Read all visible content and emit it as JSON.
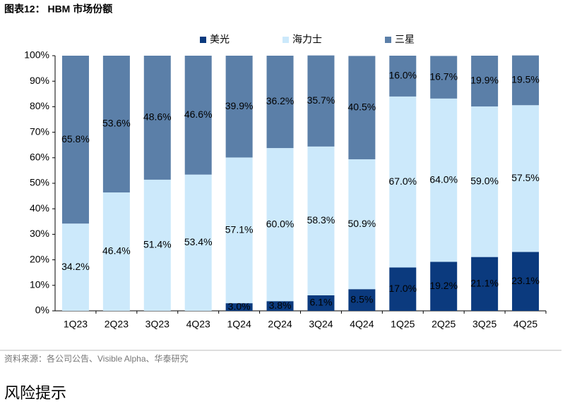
{
  "chart_data": {
    "type": "stacked-bar",
    "title": "图表12： HBM 市场份额",
    "categories": [
      "1Q23",
      "2Q23",
      "3Q23",
      "4Q23",
      "1Q24",
      "2Q24",
      "3Q24",
      "4Q24",
      "1Q25",
      "2Q25",
      "3Q25",
      "4Q25"
    ],
    "series": [
      {
        "name": "美光",
        "color": "#0b3a7e",
        "label_color": "#ffffff",
        "values": [
          null,
          null,
          null,
          null,
          3.0,
          3.8,
          6.1,
          8.5,
          17.0,
          19.2,
          21.1,
          23.1
        ],
        "value_labels": [
          null,
          null,
          null,
          null,
          "3.0%",
          "3.8%",
          "6.1%",
          "8.5%",
          "17.0%",
          "19.2%",
          "21.1%",
          "23.1%"
        ]
      },
      {
        "name": "海力士",
        "color": "#cce9fb",
        "label_color": "#000000",
        "values": [
          34.2,
          46.4,
          51.4,
          53.4,
          57.1,
          60.0,
          58.3,
          50.9,
          67.0,
          64.0,
          59.0,
          57.5
        ],
        "value_labels": [
          "34.2%",
          "46.4%",
          "51.4%",
          "53.4%",
          "57.1%",
          "60.0%",
          "58.3%",
          "50.9%",
          "67.0%",
          "64.0%",
          "59.0%",
          "57.5%"
        ]
      },
      {
        "name": "三星",
        "color": "#5b7fa8",
        "label_color": "#000000",
        "values": [
          65.8,
          53.6,
          48.6,
          46.6,
          39.9,
          36.2,
          35.7,
          40.5,
          16.0,
          16.7,
          19.9,
          19.5
        ],
        "value_labels": [
          "65.8%",
          "53.6%",
          "48.6%",
          "46.6%",
          "39.9%",
          "36.2%",
          "35.7%",
          "40.5%",
          "16.0%",
          "16.7%",
          "19.9%",
          "19.5%"
        ]
      }
    ],
    "ylim": [
      0,
      100
    ],
    "yticks": [
      {
        "value": 0,
        "label": "0%"
      },
      {
        "value": 10,
        "label": "10%"
      },
      {
        "value": 20,
        "label": "20%"
      },
      {
        "value": 30,
        "label": "30%"
      },
      {
        "value": 40,
        "label": "40%"
      },
      {
        "value": 50,
        "label": "50%"
      },
      {
        "value": 60,
        "label": "60%"
      },
      {
        "value": 70,
        "label": "70%"
      },
      {
        "value": 80,
        "label": "80%"
      },
      {
        "value": 90,
        "label": "90%"
      },
      {
        "value": 100,
        "label": "100%"
      }
    ],
    "grid": false,
    "legend": "top",
    "source": "资料来源：各公司公告、Visible Alpha、华泰研究"
  },
  "next_section": "风险提示"
}
